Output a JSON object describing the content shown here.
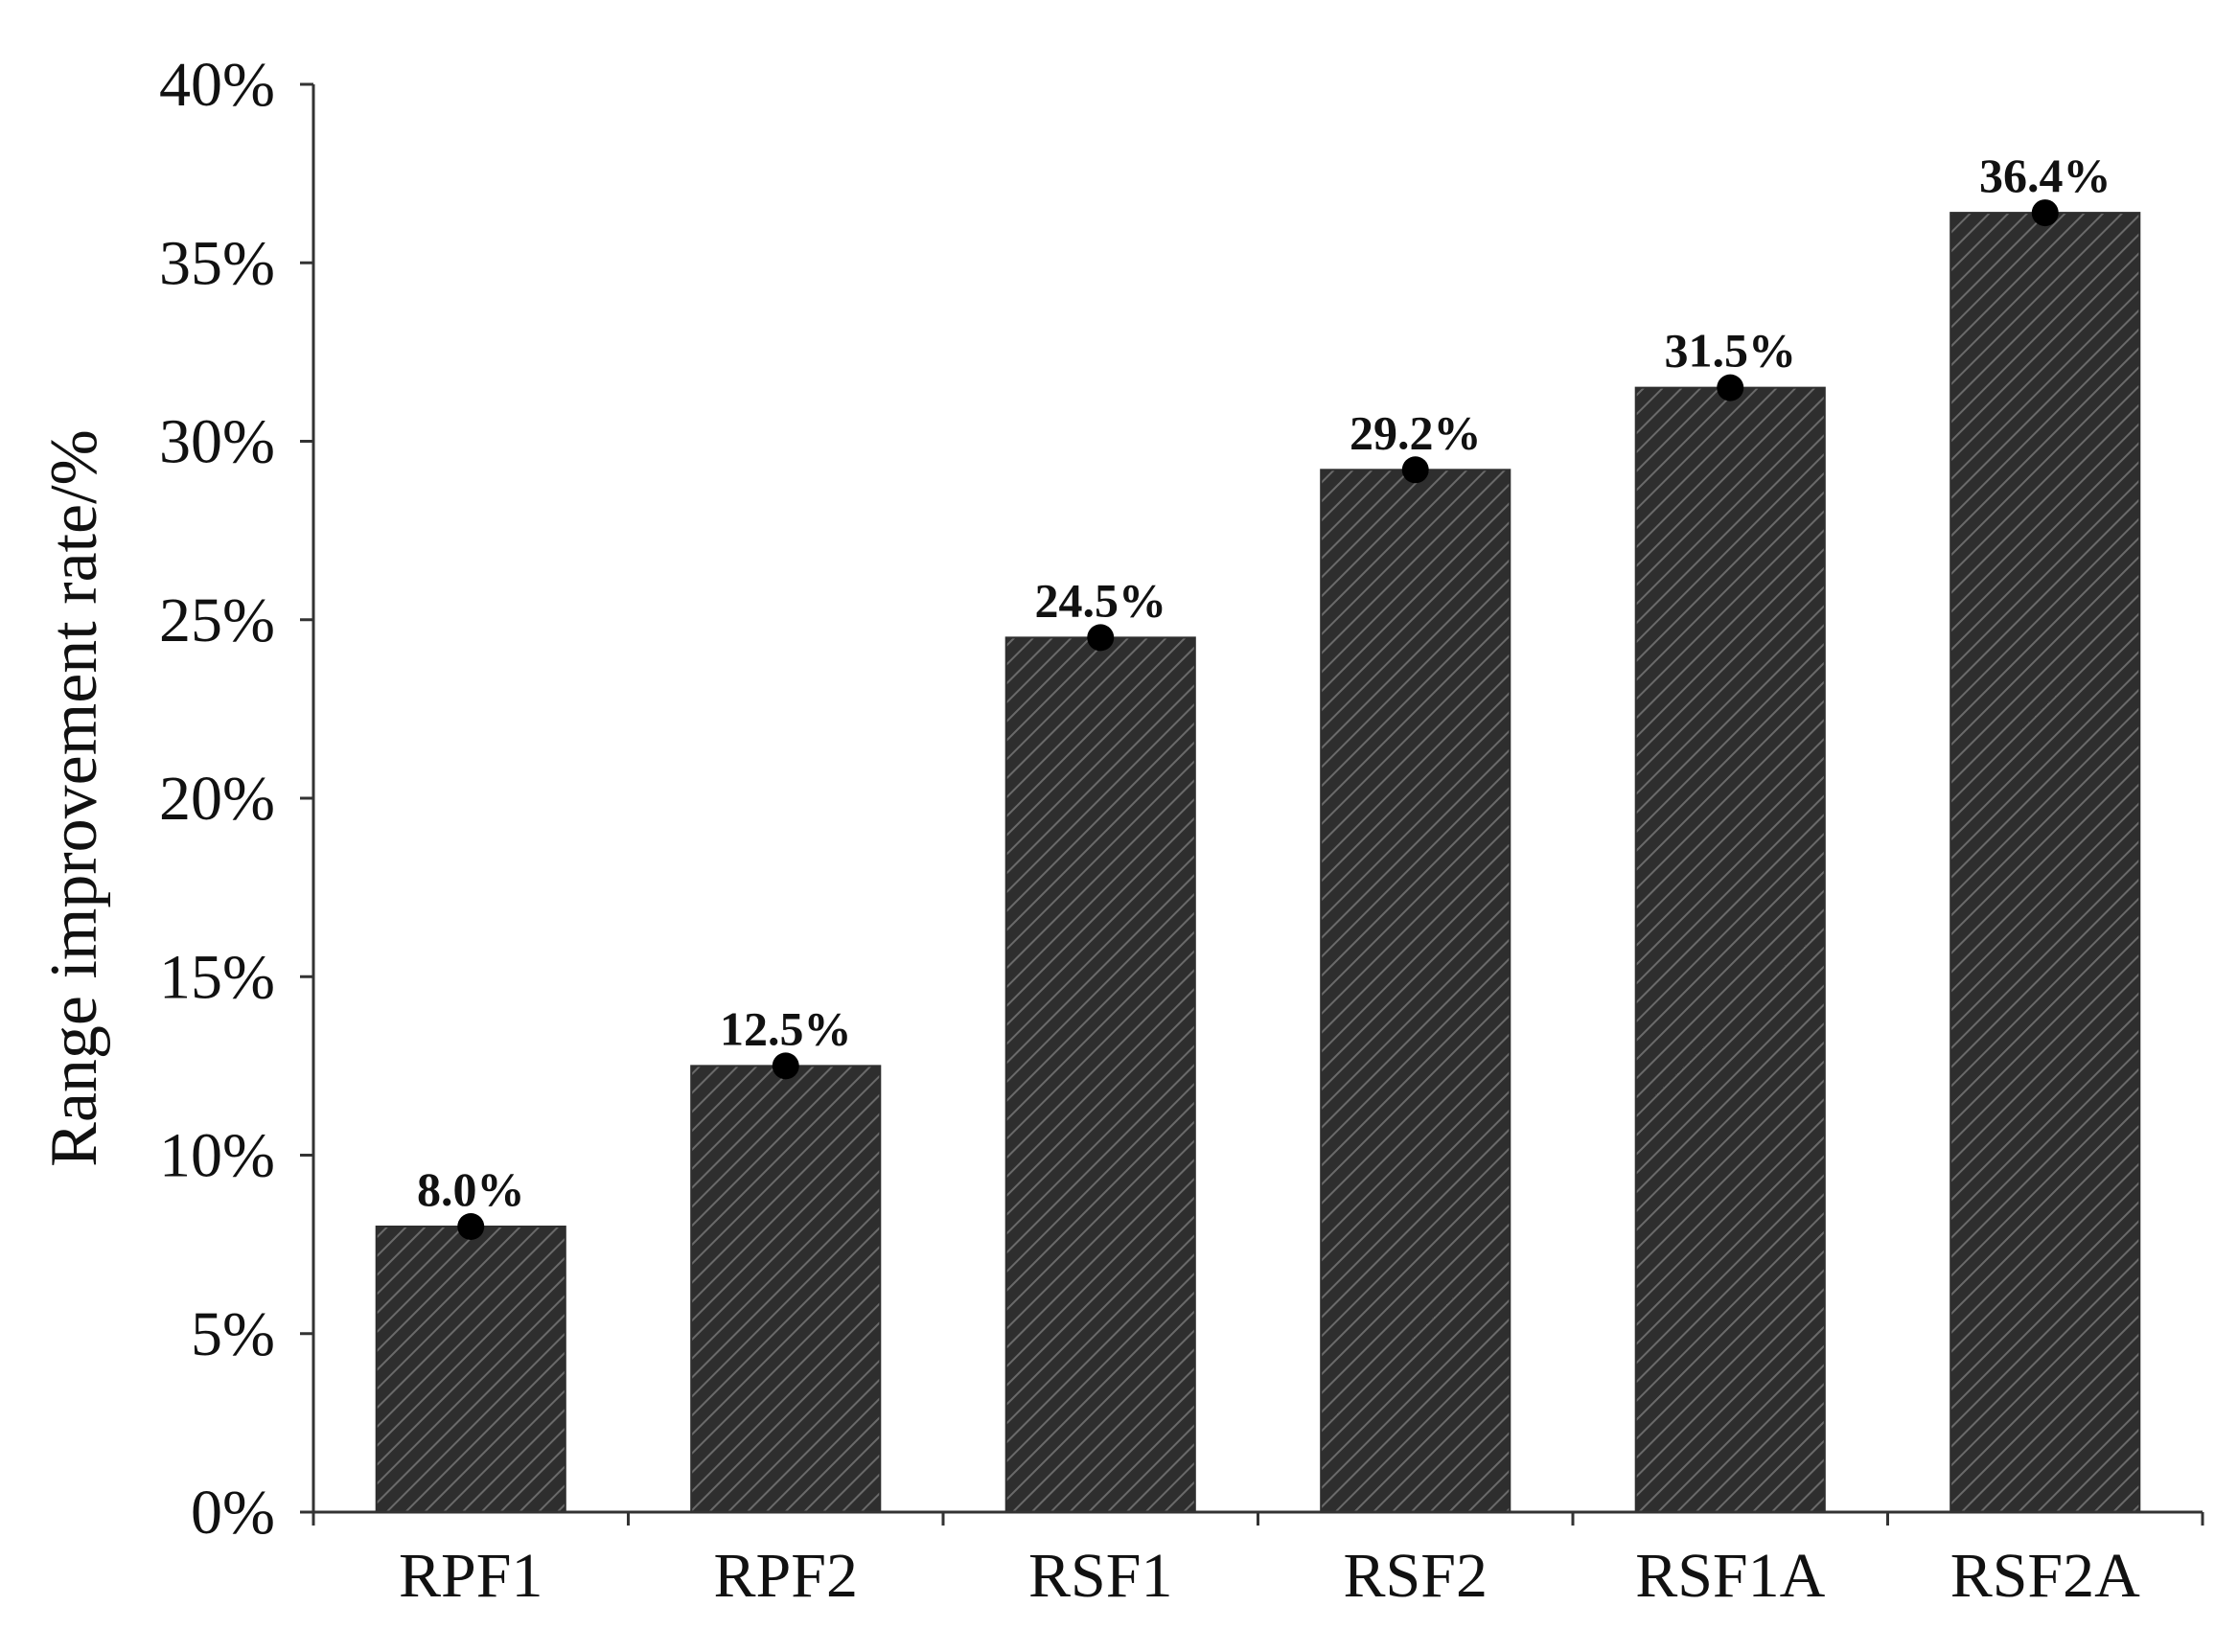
{
  "chart_data": {
    "type": "bar",
    "title": "",
    "xlabel": "",
    "ylabel": "Range improvement rate/%",
    "categories": [
      "RPF1",
      "RPF2",
      "RSF1",
      "RSF2",
      "RSF1A",
      "RSF2A"
    ],
    "values": [
      8.0,
      12.5,
      24.5,
      29.2,
      31.5,
      36.4
    ],
    "data_labels": [
      "8.0%",
      "12.5%",
      "24.5%",
      "29.2%",
      "31.5%",
      "36.4%"
    ],
    "ylim": [
      0,
      40
    ],
    "yticks": [
      0,
      5,
      10,
      15,
      20,
      25,
      30,
      35,
      40
    ],
    "ytick_labels": [
      "0%",
      "5%",
      "10%",
      "15%",
      "20%",
      "25%",
      "30%",
      "35%",
      "40%"
    ],
    "grid": false,
    "bar_fill": "hatched dark gray",
    "colors": {
      "bar": "#2e2e2e",
      "hatch": "#6a6a6a",
      "axis": "#333333",
      "marker": "#000000"
    }
  }
}
